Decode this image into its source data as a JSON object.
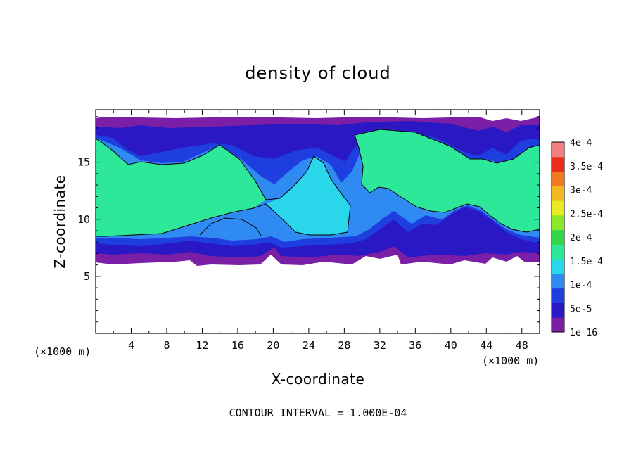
{
  "chart_data": {
    "type": "heatmap",
    "title": "density of cloud",
    "xlabel": "X-coordinate",
    "ylabel": "Z-coordinate",
    "x_unit": "(×1000 m)",
    "y_unit": "(×1000 m)",
    "xlim": [
      0,
      50
    ],
    "ylim": [
      0,
      19.6
    ],
    "x_ticks": [
      4,
      8,
      12,
      16,
      20,
      24,
      28,
      32,
      36,
      40,
      44,
      48
    ],
    "y_ticks": [
      5,
      10,
      15
    ],
    "footer": "CONTOUR INTERVAL = 1.000E-04",
    "contour_interval": 0.0001,
    "colorbar": {
      "labels": [
        "1e-16",
        "5e-5",
        "1e-4",
        "1.5e-4",
        "2e-4",
        "2.5e-4",
        "3e-4",
        "3.5e-4",
        "4e-4"
      ],
      "colors": [
        "#7a1fa6",
        "#2a18c4",
        "#1e3ee0",
        "#2f8af2",
        "#2ad6ea",
        "#2ee89a",
        "#32d84a",
        "#8ce62a",
        "#eaea22",
        "#f2b822",
        "#f27a1e",
        "#ea2e1a",
        "#f28080"
      ]
    },
    "grid": false,
    "legend_position": "right"
  }
}
